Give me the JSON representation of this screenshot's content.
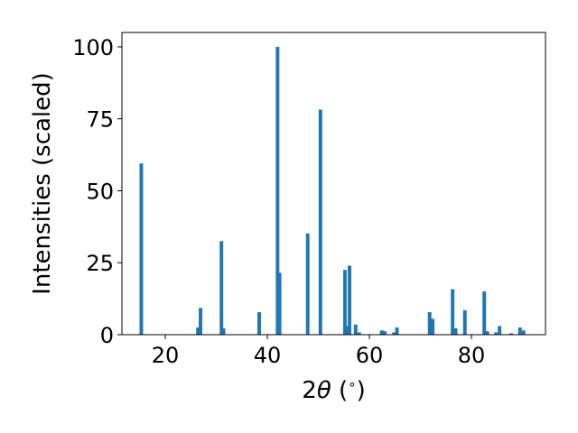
{
  "chart_data": {
    "type": "bar",
    "xlabel_prefix": "2",
    "xlabel_symbol": "θ",
    "xlabel_suffix": " (",
    "xlabel_degree": "∘",
    "xlabel_close": ")",
    "ylabel": "Intensities (scaled)",
    "xlim": [
      11.5,
      94.5
    ],
    "ylim": [
      0,
      105
    ],
    "xticks": [
      20,
      40,
      60,
      80
    ],
    "yticks": [
      0,
      25,
      50,
      75,
      100
    ],
    "grid": false,
    "bar_color": "#1f77b4",
    "bar_width_deg": 0.7,
    "series": [
      {
        "x": [
          15.3,
          26.4,
          26.9,
          31.0,
          31.4,
          38.4,
          42.0,
          42.4,
          47.9,
          50.4,
          55.2,
          55.7,
          56.1,
          57.3,
          58.0,
          62.4,
          63.0,
          64.8,
          65.4,
          71.8,
          72.4,
          76.3,
          76.9,
          78.7,
          82.5,
          83.1,
          84.8,
          85.5,
          87.8,
          89.5,
          90.2
        ],
        "values": [
          59.5,
          2.5,
          9.3,
          32.5,
          2.2,
          7.8,
          100,
          21.5,
          35.2,
          78.2,
          22.5,
          3.0,
          24.0,
          3.5,
          0.8,
          1.5,
          1.2,
          0.8,
          2.5,
          7.8,
          5.5,
          15.8,
          2.2,
          8.5,
          15.0,
          1.2,
          0.8,
          3.0,
          0.5,
          2.5,
          1.5
        ]
      }
    ]
  }
}
